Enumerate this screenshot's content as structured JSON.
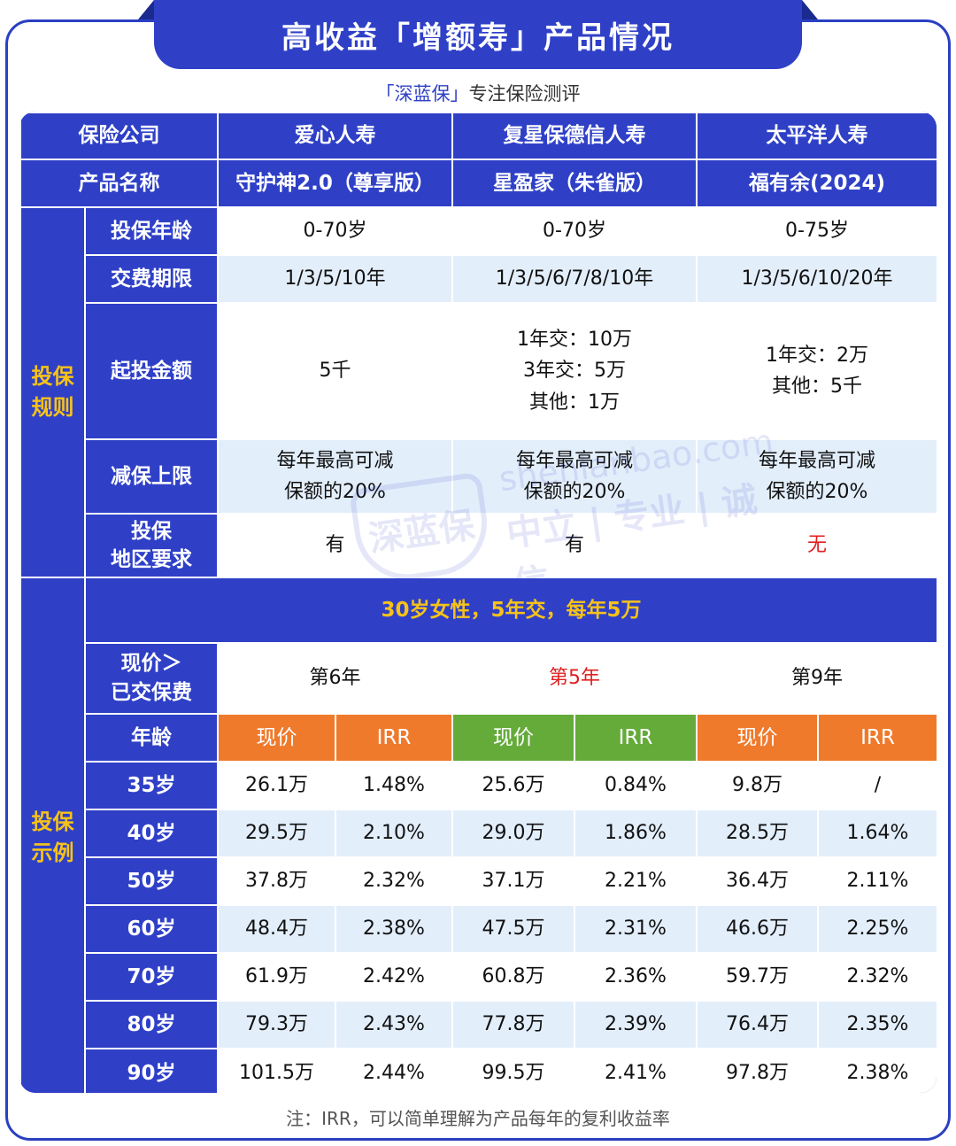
{
  "title": "高收益「增额寿」产品情况",
  "subtitle": {
    "brand": "「深蓝保」",
    "text": "专注保险测评"
  },
  "header": {
    "company_label": "保险公司",
    "product_label": "产品名称",
    "companies": [
      "爱心人寿",
      "复星保德信人寿",
      "太平洋人寿"
    ],
    "products": [
      "守护神2.0（尊享版）",
      "星盈家（朱雀版）",
      "福有余(2024)"
    ]
  },
  "rules": {
    "section_label_1": "投保",
    "section_label_2": "规则",
    "age_label": "投保年龄",
    "ages": [
      "0-70岁",
      "0-70岁",
      "0-75岁"
    ],
    "term_label": "交费期限",
    "terms": [
      "1/3/5/10年",
      "1/3/5/6/7/8/10年",
      "1/3/5/6/10/20年"
    ],
    "min_label": "起投金额",
    "min_amounts": [
      [
        "5千"
      ],
      [
        "1年交：10万",
        "3年交：5万",
        "其他：1万"
      ],
      [
        "1年交：2万",
        "其他：5千"
      ]
    ],
    "reduce_label": "减保上限",
    "reduce": [
      [
        "每年最高可减",
        "保额的20%"
      ],
      [
        "每年最高可减",
        "保额的20%"
      ],
      [
        "每年最高可减",
        "保额的20%"
      ]
    ],
    "region_label_1": "投保",
    "region_label_2": "地区要求",
    "region": [
      "有",
      "有",
      "无"
    ]
  },
  "example": {
    "section_label_1": "投保",
    "section_label_2": "示例",
    "case": "30岁女性，5年交，每年5万",
    "breakeven_label_1": "现价＞",
    "breakeven_label_2": "已交保费",
    "breakeven": [
      "第6年",
      "第5年",
      "第9年"
    ],
    "age_label": "年龄",
    "cv_label": "现价",
    "irr_label": "IRR",
    "rows": [
      {
        "age": "35岁",
        "v": [
          "26.1万",
          "1.48%",
          "25.6万",
          "0.84%",
          "9.8万",
          "/"
        ]
      },
      {
        "age": "40岁",
        "v": [
          "29.5万",
          "2.10%",
          "29.0万",
          "1.86%",
          "28.5万",
          "1.64%"
        ]
      },
      {
        "age": "50岁",
        "v": [
          "37.8万",
          "2.32%",
          "37.1万",
          "2.21%",
          "36.4万",
          "2.11%"
        ]
      },
      {
        "age": "60岁",
        "v": [
          "48.4万",
          "2.38%",
          "47.5万",
          "2.31%",
          "46.6万",
          "2.25%"
        ]
      },
      {
        "age": "70岁",
        "v": [
          "61.9万",
          "2.42%",
          "60.8万",
          "2.36%",
          "59.7万",
          "2.32%"
        ]
      },
      {
        "age": "80岁",
        "v": [
          "79.3万",
          "2.43%",
          "77.8万",
          "2.39%",
          "76.4万",
          "2.35%"
        ]
      },
      {
        "age": "90岁",
        "v": [
          "101.5万",
          "2.44%",
          "99.5万",
          "2.41%",
          "97.8万",
          "2.38%"
        ]
      }
    ]
  },
  "watermark": {
    "logo": "深蓝保",
    "domain": "shenlanbao.com",
    "slogan": "中立 | 专业 | 诚信"
  },
  "footnote": "注：IRR，可以简单理解为产品每年的复利收益率",
  "colors": {
    "primary": "#2f40c7",
    "gold": "#f6c21a",
    "orange": "#ef7a2c",
    "green": "#64ab3a",
    "red": "#e02020",
    "light_row": "#e3eefb"
  }
}
